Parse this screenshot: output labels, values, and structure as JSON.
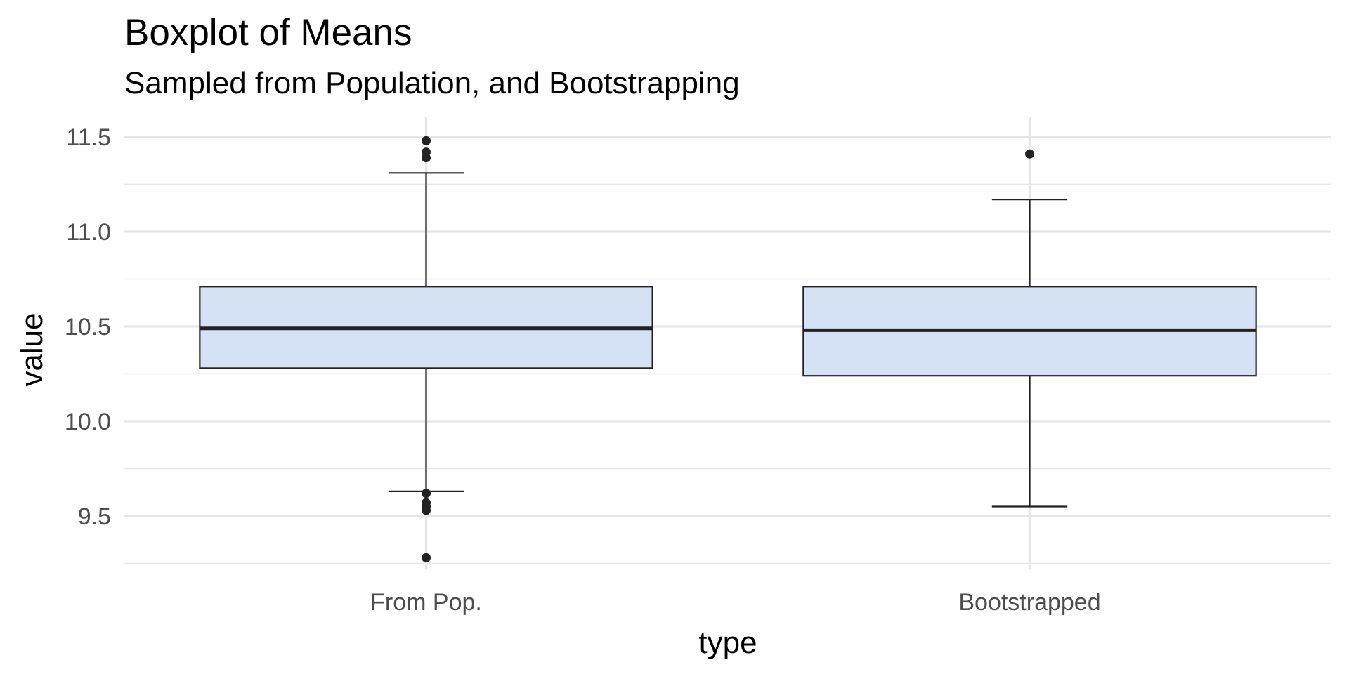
{
  "chart_data": {
    "type": "boxplot",
    "title": "Boxplot of Means",
    "subtitle": "Sampled from Population, and Bootstrapping",
    "xlabel": "type",
    "ylabel": "value",
    "categories": [
      "From Pop.",
      "Bootstrapped"
    ],
    "ylim": [
      9.25,
      11.6
    ],
    "y_ticks": [
      9.5,
      10.0,
      10.5,
      11.0,
      11.5
    ],
    "y_tick_labels": [
      "9.5",
      "10.0",
      "10.5",
      "11.0",
      "11.5"
    ],
    "grid": true,
    "legend": "none",
    "colors": {
      "box_fill": "#d5e1f4",
      "box_stroke": "#222222",
      "grid": "#e6e6e6",
      "outlier": "#222222"
    },
    "boxes": [
      {
        "category": "From Pop.",
        "whisker_low": 9.63,
        "q1": 10.28,
        "median": 10.49,
        "q3": 10.71,
        "whisker_high": 11.31,
        "outliers": [
          9.28,
          9.53,
          9.55,
          9.57,
          9.62,
          11.39,
          11.42,
          11.48
        ]
      },
      {
        "category": "Bootstrapped",
        "whisker_low": 9.55,
        "q1": 10.24,
        "median": 10.48,
        "q3": 10.71,
        "whisker_high": 11.17,
        "outliers": [
          11.41
        ]
      }
    ]
  }
}
